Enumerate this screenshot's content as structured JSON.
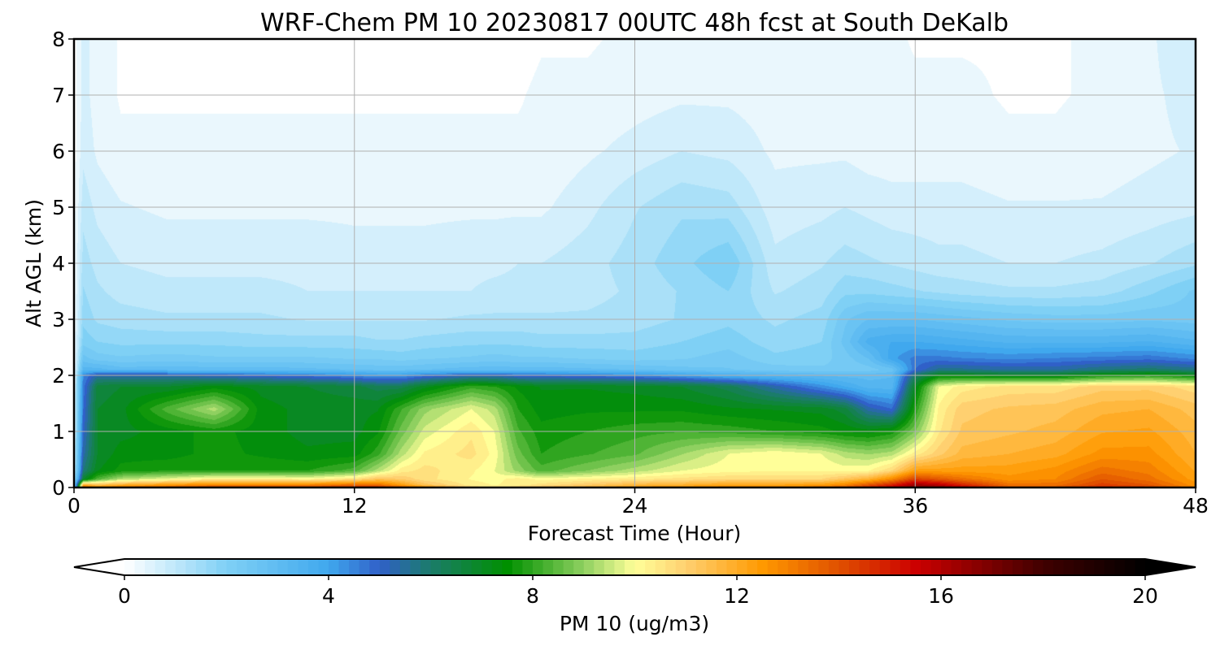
{
  "chart_data": {
    "type": "heatmap",
    "title": "WRF-Chem PM 10  20230817 00UTC 48h fcst at South DeKalb",
    "xlabel": "Forecast Time (Hour)",
    "ylabel": "Alt AGL (km)",
    "xlim": [
      0,
      48
    ],
    "ylim": [
      0,
      8
    ],
    "xticks": [
      0,
      12,
      24,
      36,
      48
    ],
    "yticks": [
      0,
      1,
      2,
      3,
      4,
      5,
      6,
      7,
      8
    ],
    "grid": true,
    "colorbar": {
      "label": "PM 10  (ug/m3)",
      "range": [
        0,
        20
      ],
      "ticks": [
        0,
        4,
        8,
        12,
        16,
        20
      ],
      "extend": "both",
      "orientation": "horizontal",
      "stops": [
        {
          "v": 0,
          "c": "#ffffff"
        },
        {
          "v": 2,
          "c": "#7fd0f5"
        },
        {
          "v": 4,
          "c": "#40a8ee"
        },
        {
          "v": 5,
          "c": "#3060c8"
        },
        {
          "v": 6,
          "c": "#1b7c6a"
        },
        {
          "v": 7.5,
          "c": "#009000"
        },
        {
          "v": 9,
          "c": "#8fd060"
        },
        {
          "v": 10,
          "c": "#ffff99"
        },
        {
          "v": 11,
          "c": "#ffd070"
        },
        {
          "v": 12.5,
          "c": "#ff9900"
        },
        {
          "v": 14,
          "c": "#e05000"
        },
        {
          "v": 15.5,
          "c": "#cc0000"
        },
        {
          "v": 18,
          "c": "#400000"
        },
        {
          "v": 20,
          "c": "#000000"
        }
      ]
    },
    "field": {
      "x": [
        0,
        0.4,
        1,
        2,
        4,
        6,
        8,
        10,
        12,
        13,
        14,
        15,
        17,
        18,
        19,
        20,
        22,
        24,
        26,
        28,
        30,
        32,
        33,
        34,
        35,
        36,
        37,
        38,
        40,
        42,
        44,
        46,
        48
      ],
      "y": [
        0,
        0.05,
        0.15,
        0.3,
        0.6,
        1.0,
        1.4,
        1.8,
        2.0,
        2.1,
        2.3,
        2.6,
        3.0,
        3.5,
        4.0,
        5.0,
        6.0,
        7.0,
        8.0
      ],
      "values": [
        [
          2,
          14,
          13,
          13.5,
          14,
          14.5,
          14.5,
          14.5,
          15,
          15,
          14,
          13,
          11,
          10.5,
          11,
          11.5,
          12,
          12.5,
          13,
          13,
          13,
          13.5,
          14,
          15,
          16,
          17,
          17,
          16,
          14,
          14,
          15,
          14.5,
          13
        ],
        [
          2,
          12,
          11.5,
          12,
          12.5,
          13,
          13,
          13,
          13.5,
          13.5,
          12.5,
          11.5,
          10.5,
          10.3,
          10.5,
          10.8,
          11.3,
          11.8,
          12,
          12.3,
          12.3,
          12.5,
          13,
          14,
          15,
          16.5,
          16,
          15,
          13.5,
          13.5,
          14.5,
          14,
          12.8
        ],
        [
          1.5,
          7,
          8.5,
          9.5,
          10,
          10.5,
          10.5,
          10.3,
          10.8,
          11.5,
          11.3,
          10.8,
          10.3,
          10.2,
          10.5,
          10.2,
          10.4,
          10.6,
          10.8,
          11,
          11,
          11,
          11.5,
          12,
          13,
          14.5,
          14,
          13.5,
          12.8,
          13,
          14,
          13.5,
          12.5
        ],
        [
          1,
          6,
          7.3,
          7.8,
          8,
          8,
          8,
          8,
          8.5,
          9.5,
          10.5,
          10.8,
          10.4,
          10,
          9.2,
          8.5,
          9,
          9.5,
          10,
          10.2,
          10.3,
          10.3,
          10.2,
          10.3,
          11,
          12.5,
          12.5,
          12.5,
          12.5,
          12.8,
          13.5,
          13.2,
          12.3
        ],
        [
          0.8,
          5.5,
          7,
          7.5,
          7.5,
          7.8,
          7.6,
          7.4,
          7.5,
          8.2,
          9.5,
          10.4,
          10.8,
          10.2,
          8.8,
          8,
          8.3,
          8.6,
          9.3,
          10,
          10.3,
          10,
          9.5,
          9.3,
          9.5,
          10.5,
          11.2,
          11.8,
          12,
          12.2,
          12.8,
          12.8,
          12
        ],
        [
          0.6,
          5.2,
          7,
          7.2,
          7.5,
          7.8,
          7.5,
          7.2,
          7.2,
          7.6,
          8.8,
          9.8,
          10.6,
          10,
          8.4,
          7.8,
          8,
          8.2,
          8.3,
          8.2,
          8,
          7.8,
          7.6,
          7.5,
          7.8,
          9,
          10.6,
          11.4,
          11.6,
          11.8,
          12.3,
          12.4,
          11.8
        ],
        [
          0.5,
          5,
          7,
          7.2,
          8.5,
          9.5,
          7.5,
          7.2,
          7.2,
          7.3,
          8.3,
          9.2,
          10,
          9.5,
          8,
          7.5,
          7.6,
          7.6,
          7.6,
          7.4,
          7.3,
          7.2,
          6.8,
          5.5,
          5,
          8,
          10.4,
          11.2,
          11.4,
          11.5,
          11.9,
          12,
          11.5
        ],
        [
          0.4,
          4.8,
          6.8,
          7,
          7,
          7.5,
          7.2,
          7,
          6.8,
          6.5,
          6.5,
          7.2,
          8.2,
          8,
          7.6,
          7.3,
          7.3,
          7.2,
          7,
          6.5,
          5.5,
          4.5,
          4,
          3.5,
          3.5,
          7.2,
          10,
          10.5,
          10.8,
          10.8,
          11.2,
          11.2,
          10.8
        ],
        [
          0.35,
          4.6,
          5.5,
          5.5,
          5.5,
          5.2,
          5,
          4.8,
          4.5,
          4.3,
          4.3,
          4.8,
          5.3,
          5.3,
          5,
          5,
          4.8,
          4.6,
          4.2,
          3.8,
          3.5,
          3.3,
          3.2,
          3.2,
          3.3,
          6.2,
          7.4,
          7.4,
          7.2,
          7.2,
          7.8,
          8,
          7.5
        ],
        [
          0.3,
          3.5,
          3.5,
          3.2,
          3.2,
          3.2,
          3.2,
          3.1,
          3,
          2.9,
          2.9,
          3,
          3.2,
          3.2,
          3.2,
          3.2,
          3.1,
          3,
          2.8,
          2.7,
          2.5,
          2.4,
          2.4,
          2.5,
          2.8,
          5,
          5.8,
          5.8,
          5.6,
          5.6,
          6,
          6.2,
          5.9
        ],
        [
          0.3,
          2.8,
          2.5,
          2.4,
          2.5,
          2.4,
          2.4,
          2.4,
          2.3,
          2.3,
          2.2,
          2.3,
          2.4,
          2.5,
          2.4,
          2.4,
          2.3,
          2.2,
          2.3,
          2.5,
          2.1,
          2.2,
          2.5,
          3,
          4.2,
          4.8,
          4.8,
          4.7,
          4.6,
          4.7,
          4.8,
          4.9,
          4.6
        ],
        [
          0.3,
          2.2,
          2,
          1.9,
          1.9,
          1.9,
          1.8,
          1.8,
          1.8,
          1.7,
          1.7,
          1.8,
          1.9,
          1.9,
          1.9,
          1.8,
          1.8,
          1.8,
          2,
          2.2,
          1.8,
          2,
          2.8,
          3.8,
          4,
          4,
          3.9,
          3.8,
          3.6,
          3.6,
          3.6,
          3.7,
          3.4
        ],
        [
          0.25,
          1.9,
          1.6,
          1.5,
          1.4,
          1.4,
          1.4,
          1.3,
          1.3,
          1.3,
          1.3,
          1.3,
          1.4,
          1.4,
          1.4,
          1.4,
          1.4,
          1.5,
          1.7,
          1.9,
          1.6,
          1.8,
          2.6,
          3,
          3,
          3,
          2.9,
          2.8,
          2.6,
          2.5,
          2.5,
          2.6,
          2.5
        ],
        [
          0.2,
          1.7,
          1.4,
          1.2,
          1.1,
          1.1,
          1.1,
          1,
          1,
          1,
          1,
          1,
          1,
          1.1,
          1.1,
          1.1,
          1.2,
          1.4,
          1.7,
          2,
          1.3,
          1.5,
          1.9,
          1.9,
          1.8,
          1.7,
          1.6,
          1.5,
          1.4,
          1.4,
          1.5,
          1.9,
          2.4
        ],
        [
          0.2,
          1.5,
          1.2,
          1,
          0.9,
          0.9,
          0.9,
          0.9,
          0.8,
          0.8,
          0.8,
          0.8,
          0.9,
          0.9,
          1,
          1,
          1.2,
          1.5,
          1.9,
          2.3,
          1.1,
          1.3,
          1.5,
          1.4,
          1.3,
          1.2,
          1.1,
          1.1,
          1,
          1,
          1.1,
          1.3,
          1.6
        ],
        [
          0.2,
          1.2,
          0.9,
          0.7,
          0.6,
          0.6,
          0.6,
          0.6,
          0.6,
          0.6,
          0.6,
          0.6,
          0.6,
          0.6,
          0.6,
          0.6,
          0.9,
          1.3,
          1.6,
          1.5,
          0.8,
          0.9,
          1,
          0.9,
          0.8,
          0.8,
          0.8,
          0.8,
          0.7,
          0.7,
          0.7,
          0.8,
          0.9
        ],
        [
          0.15,
          0.9,
          0.6,
          0.4,
          0.4,
          0.4,
          0.4,
          0.4,
          0.4,
          0.4,
          0.4,
          0.4,
          0.4,
          0.4,
          0.4,
          0.4,
          0.6,
          0.8,
          1,
          0.9,
          0.6,
          0.6,
          0.6,
          0.5,
          0.5,
          0.5,
          0.5,
          0.5,
          0.4,
          0.4,
          0.5,
          0.6,
          0.7
        ],
        [
          0.15,
          0.8,
          0.5,
          0.3,
          0.3,
          0.3,
          0.3,
          0.3,
          0.3,
          0.3,
          0.3,
          0.3,
          0.3,
          0.3,
          0.3,
          0.4,
          0.4,
          0.5,
          0.6,
          0.6,
          0.5,
          0.5,
          0.5,
          0.4,
          0.4,
          0.4,
          0.4,
          0.4,
          0.3,
          0.3,
          0.4,
          0.6,
          0.8
        ],
        [
          0.15,
          0.8,
          0.5,
          0.3,
          0.2,
          0.2,
          0.2,
          0.2,
          0.2,
          0.2,
          0.2,
          0.2,
          0.2,
          0.2,
          0.2,
          0.3,
          0.3,
          0.4,
          0.5,
          0.5,
          0.4,
          0.4,
          0.4,
          0.4,
          0.4,
          0.3,
          0.3,
          0.3,
          0.3,
          0.3,
          0.4,
          0.6,
          1
        ]
      ]
    }
  }
}
